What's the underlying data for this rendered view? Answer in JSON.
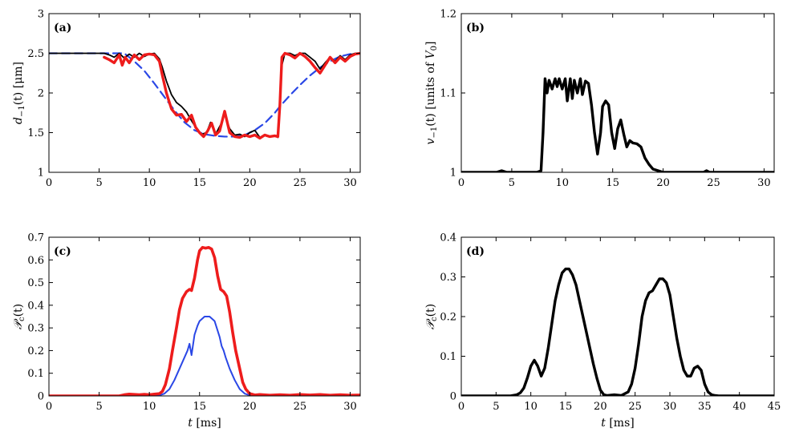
{
  "figure_title": "",
  "chart_data": [
    {
      "id": "a",
      "type": "line",
      "panel_label": "(a)",
      "title": "",
      "xlabel": "",
      "ylabel": "d_{-1}(t) [μm]",
      "ylabel_parts": {
        "main": "d",
        "sub": "−1",
        "rest": "(t) [μm]"
      },
      "xlim": [
        0,
        31
      ],
      "ylim": [
        1,
        3
      ],
      "xticks": [
        0,
        5,
        10,
        15,
        20,
        25,
        30
      ],
      "yticks": [
        1,
        1.5,
        2,
        2.5,
        3
      ],
      "ytick_labels": [
        "1",
        "1.5",
        "2",
        "2.5",
        "3"
      ],
      "grid": false,
      "series": [
        {
          "name": "dashed blue",
          "color": "#2a47e6",
          "width": 2.2,
          "dash": "10,6",
          "x": [
            0,
            7.5,
            8.5,
            9.5,
            10.5,
            11.5,
            12.5,
            13.5,
            14.5,
            15.5,
            16.5,
            17.5,
            18.5,
            19.5,
            20.5,
            21.5,
            22.5,
            23,
            24,
            25,
            26,
            27,
            28,
            29,
            30,
            31
          ],
          "y": [
            2.5,
            2.5,
            2.4,
            2.28,
            2.12,
            1.95,
            1.78,
            1.63,
            1.53,
            1.48,
            1.46,
            1.45,
            1.45,
            1.47,
            1.53,
            1.62,
            1.75,
            1.83,
            1.97,
            2.1,
            2.22,
            2.32,
            2.4,
            2.46,
            2.49,
            2.5
          ]
        },
        {
          "name": "thin black",
          "color": "#000000",
          "width": 1.8,
          "dash": "",
          "x": [
            0,
            5.5,
            6,
            6.5,
            7,
            7.5,
            8,
            8.5,
            9,
            9.5,
            10,
            10.5,
            11,
            11.3,
            11.7,
            12.2,
            12.7,
            13.2,
            13.7,
            14.2,
            14.7,
            15.2,
            15.7,
            16.1,
            16.6,
            17.1,
            17.5,
            18,
            18.5,
            19,
            19.5,
            20,
            20.5,
            21,
            21.5,
            22,
            22.5,
            22.8,
            23,
            23.2,
            23.5,
            24,
            24.5,
            25,
            25.5,
            26,
            26.5,
            27,
            27.5,
            28,
            28.5,
            29,
            29.5,
            30,
            30.5,
            31
          ],
          "y": [
            2.5,
            2.5,
            2.48,
            2.45,
            2.5,
            2.44,
            2.49,
            2.45,
            2.5,
            2.46,
            2.49,
            2.5,
            2.43,
            2.32,
            2.15,
            1.98,
            1.88,
            1.83,
            1.76,
            1.65,
            1.55,
            1.48,
            1.5,
            1.63,
            1.48,
            1.6,
            1.73,
            1.55,
            1.47,
            1.48,
            1.45,
            1.5,
            1.53,
            1.44,
            1.47,
            1.45,
            1.46,
            1.44,
            1.8,
            2.35,
            2.5,
            2.5,
            2.47,
            2.5,
            2.5,
            2.45,
            2.4,
            2.3,
            2.38,
            2.45,
            2.4,
            2.47,
            2.42,
            2.48,
            2.5,
            2.5
          ]
        },
        {
          "name": "thick red",
          "color": "#ee1c1c",
          "width": 3.4,
          "dash": "",
          "x": [
            5.5,
            6,
            6.5,
            7,
            7.3,
            7.6,
            8,
            8.5,
            9,
            9.5,
            10,
            10.5,
            11,
            11.3,
            11.7,
            12.2,
            12.7,
            13.2,
            13.7,
            14.2,
            14.6,
            15,
            15.4,
            15.8,
            16.2,
            16.6,
            17,
            17.5,
            18,
            18.5,
            19,
            19.5,
            20,
            20.5,
            21,
            21.5,
            22,
            22.5,
            22.8,
            23,
            23.2,
            23.5,
            24,
            24.5,
            25,
            25.5,
            26,
            26.5,
            27,
            27.5,
            28,
            28.5,
            29,
            29.5,
            30,
            30.5,
            31
          ],
          "y": [
            2.45,
            2.42,
            2.38,
            2.48,
            2.35,
            2.45,
            2.38,
            2.48,
            2.42,
            2.48,
            2.49,
            2.48,
            2.4,
            2.22,
            2.0,
            1.8,
            1.72,
            1.73,
            1.64,
            1.72,
            1.57,
            1.5,
            1.45,
            1.52,
            1.62,
            1.47,
            1.52,
            1.77,
            1.5,
            1.45,
            1.44,
            1.47,
            1.45,
            1.47,
            1.43,
            1.47,
            1.45,
            1.46,
            1.45,
            1.85,
            2.45,
            2.5,
            2.48,
            2.44,
            2.5,
            2.46,
            2.4,
            2.32,
            2.25,
            2.35,
            2.45,
            2.38,
            2.45,
            2.4,
            2.46,
            2.49,
            2.5
          ]
        }
      ]
    },
    {
      "id": "b",
      "type": "line",
      "panel_label": "(b)",
      "title": "",
      "xlabel": "",
      "ylabel": "v_{-1}(t) [units of V_0]",
      "ylabel_parts": {
        "main": "v",
        "sub": "−1",
        "rest": "(t) [units of ",
        "v0": "V",
        "v0sub": "0",
        "end": "]"
      },
      "xlim": [
        0,
        31
      ],
      "ylim": [
        1,
        1.2
      ],
      "xticks": [
        0,
        5,
        10,
        15,
        20,
        25,
        30
      ],
      "yticks": [
        1,
        1.1,
        1.2
      ],
      "ytick_labels": [
        "1",
        "1.1",
        "1.2"
      ],
      "grid": false,
      "series": [
        {
          "name": "velocity",
          "color": "#000000",
          "width": 3.4,
          "dash": "",
          "x": [
            0,
            3.5,
            4,
            4.5,
            5,
            7.5,
            7.9,
            8.1,
            8.3,
            8.5,
            8.7,
            9,
            9.3,
            9.5,
            9.7,
            10,
            10.3,
            10.5,
            10.8,
            11,
            11.2,
            11.5,
            11.8,
            12,
            12.3,
            12.6,
            12.9,
            13.2,
            13.5,
            13.8,
            14,
            14.3,
            14.6,
            14.9,
            15.2,
            15.5,
            15.8,
            16.1,
            16.4,
            16.7,
            17,
            17.4,
            17.8,
            18.2,
            18.6,
            19,
            19.5,
            20,
            22,
            24,
            24.3,
            24.6,
            26,
            31
          ],
          "y": [
            1.0,
            1.0,
            1.002,
            1.0,
            1.0,
            1.0,
            1.002,
            1.05,
            1.118,
            1.1,
            1.116,
            1.105,
            1.118,
            1.108,
            1.118,
            1.105,
            1.118,
            1.09,
            1.118,
            1.093,
            1.116,
            1.1,
            1.118,
            1.098,
            1.115,
            1.112,
            1.085,
            1.05,
            1.023,
            1.05,
            1.083,
            1.09,
            1.085,
            1.05,
            1.03,
            1.055,
            1.066,
            1.048,
            1.032,
            1.04,
            1.037,
            1.036,
            1.032,
            1.018,
            1.01,
            1.004,
            1.002,
            1.0,
            1.0,
            1.0,
            1.002,
            1.0,
            1.0,
            1.0
          ]
        }
      ]
    },
    {
      "id": "c",
      "type": "line",
      "panel_label": "(c)",
      "title": "",
      "xlabel": "t [ms]",
      "ylabel": "P_c(t)",
      "ylabel_parts": {
        "main": "𝒫",
        "sub": "c",
        "rest": "(t)"
      },
      "xlim": [
        0,
        31
      ],
      "ylim": [
        0,
        0.7
      ],
      "xticks": [
        0,
        5,
        10,
        15,
        20,
        25,
        30
      ],
      "yticks": [
        0,
        0.1,
        0.2,
        0.3,
        0.4,
        0.5,
        0.6,
        0.7
      ],
      "ytick_labels": [
        "0",
        "0.1",
        "0.2",
        "0.3",
        "0.4",
        "0.5",
        "0.6",
        "0.7"
      ],
      "grid": false,
      "series": [
        {
          "name": "thin blue",
          "color": "#2a47e6",
          "width": 2.0,
          "dash": "",
          "x": [
            0,
            10.5,
            11,
            11.5,
            12,
            12.5,
            13,
            13.5,
            13.8,
            14,
            14.2,
            14.5,
            14.8,
            15,
            15.5,
            16,
            16.5,
            17,
            17.2,
            17.4,
            17.6,
            18,
            18.5,
            19,
            19.5,
            20,
            20.5,
            31
          ],
          "y": [
            0,
            0,
            0.003,
            0.01,
            0.03,
            0.07,
            0.12,
            0.17,
            0.2,
            0.23,
            0.18,
            0.27,
            0.31,
            0.33,
            0.35,
            0.35,
            0.33,
            0.26,
            0.22,
            0.2,
            0.17,
            0.12,
            0.07,
            0.03,
            0.01,
            0.003,
            0,
            0
          ]
        },
        {
          "name": "thick red",
          "color": "#ee1c1c",
          "width": 3.6,
          "dash": "",
          "x": [
            0,
            5,
            7,
            7.5,
            8,
            9,
            9.5,
            10,
            10.5,
            11,
            11.3,
            11.6,
            12,
            12.3,
            12.7,
            13,
            13.3,
            13.7,
            14,
            14.2,
            14.5,
            14.8,
            15,
            15.3,
            15.6,
            15.9,
            16.2,
            16.5,
            16.8,
            17.1,
            17.4,
            17.7,
            18,
            18.3,
            18.6,
            19,
            19.3,
            19.6,
            20,
            20.5,
            21,
            22,
            23,
            24,
            25,
            26,
            27,
            28,
            29,
            30,
            31
          ],
          "y": [
            0,
            0,
            0,
            0.005,
            0.008,
            0.005,
            0.007,
            0.005,
            0.008,
            0.01,
            0.02,
            0.05,
            0.12,
            0.2,
            0.3,
            0.38,
            0.43,
            0.46,
            0.47,
            0.465,
            0.52,
            0.6,
            0.64,
            0.655,
            0.652,
            0.655,
            0.648,
            0.61,
            0.53,
            0.47,
            0.46,
            0.44,
            0.37,
            0.28,
            0.2,
            0.12,
            0.06,
            0.03,
            0.01,
            0.004,
            0.006,
            0.003,
            0.005,
            0.003,
            0.006,
            0.004,
            0.006,
            0.003,
            0.005,
            0.003,
            0.004
          ]
        }
      ]
    },
    {
      "id": "d",
      "type": "line",
      "panel_label": "(d)",
      "title": "",
      "xlabel": "t [ms]",
      "ylabel": "P_c(t)",
      "ylabel_parts": {
        "main": "𝒫",
        "sub": "c",
        "rest": "(t)"
      },
      "xlim": [
        0,
        45
      ],
      "ylim": [
        0,
        0.4
      ],
      "xticks": [
        0,
        5,
        10,
        15,
        20,
        25,
        30,
        35,
        40,
        45
      ],
      "yticks": [
        0,
        0.1,
        0.2,
        0.3,
        0.4
      ],
      "ytick_labels": [
        "0",
        "0.1",
        "0.2",
        "0.3",
        "0.4"
      ],
      "grid": false,
      "series": [
        {
          "name": "probability",
          "color": "#000000",
          "width": 3.4,
          "dash": "",
          "x": [
            0,
            7,
            8,
            8.5,
            9,
            9.5,
            10,
            10.5,
            11,
            11.5,
            12,
            12.5,
            13,
            13.5,
            14,
            14.5,
            15,
            15.5,
            16,
            16.5,
            17,
            17.5,
            18,
            18.5,
            19,
            19.5,
            20,
            20.5,
            21,
            22,
            23,
            24,
            24.5,
            25,
            25.5,
            26,
            26.5,
            27,
            27.5,
            28,
            28.5,
            29,
            29.5,
            30,
            30.5,
            31,
            31.5,
            32,
            32.5,
            33,
            33.5,
            34,
            34.5,
            35,
            35.5,
            36,
            36.5,
            37,
            38,
            40,
            45
          ],
          "y": [
            0,
            0,
            0.003,
            0.008,
            0.02,
            0.045,
            0.075,
            0.09,
            0.075,
            0.05,
            0.07,
            0.12,
            0.18,
            0.24,
            0.28,
            0.31,
            0.32,
            0.32,
            0.305,
            0.28,
            0.24,
            0.2,
            0.16,
            0.12,
            0.08,
            0.045,
            0.015,
            0.003,
            0.001,
            0.003,
            0.001,
            0.01,
            0.03,
            0.07,
            0.13,
            0.2,
            0.24,
            0.26,
            0.265,
            0.28,
            0.295,
            0.295,
            0.285,
            0.255,
            0.2,
            0.145,
            0.1,
            0.065,
            0.05,
            0.05,
            0.07,
            0.075,
            0.065,
            0.03,
            0.01,
            0.003,
            0.001,
            0,
            0,
            0,
            0
          ]
        }
      ]
    }
  ]
}
